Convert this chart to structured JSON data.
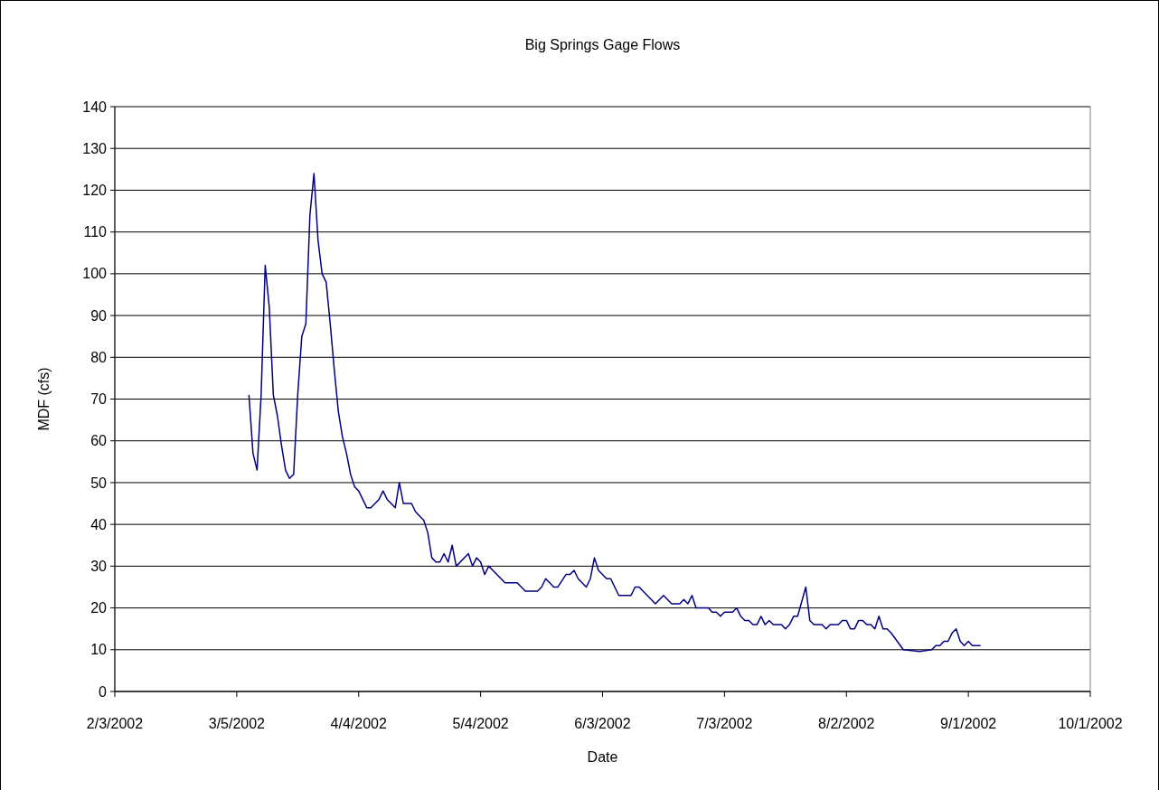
{
  "chart_data": {
    "type": "line",
    "title": "Big Springs Gage Flows",
    "xlabel": "Date",
    "ylabel": "MDF (cfs)",
    "xlim": [
      "2002-02-03",
      "2002-10-01"
    ],
    "xticks": [
      {
        "value": "2002-02-03",
        "label": "2/3/2002"
      },
      {
        "value": "2002-03-05",
        "label": "3/5/2002"
      },
      {
        "value": "2002-04-04",
        "label": "4/4/2002"
      },
      {
        "value": "2002-05-04",
        "label": "5/4/2002"
      },
      {
        "value": "2002-06-03",
        "label": "6/3/2002"
      },
      {
        "value": "2002-07-03",
        "label": "7/3/2002"
      },
      {
        "value": "2002-08-02",
        "label": "8/2/2002"
      },
      {
        "value": "2002-09-01",
        "label": "9/1/2002"
      },
      {
        "value": "2002-10-01",
        "label": "10/1/2002"
      }
    ],
    "ylim": [
      0,
      140
    ],
    "yticks": [
      0,
      10,
      20,
      30,
      40,
      50,
      60,
      70,
      80,
      90,
      100,
      110,
      120,
      130,
      140
    ],
    "grid": "y",
    "marker": "none",
    "line_style": "solid",
    "x": [
      "2002-03-08",
      "2002-03-09",
      "2002-03-10",
      "2002-03-11",
      "2002-03-12",
      "2002-03-13",
      "2002-03-14",
      "2002-03-15",
      "2002-03-16",
      "2002-03-17",
      "2002-03-18",
      "2002-03-19",
      "2002-03-20",
      "2002-03-21",
      "2002-03-22",
      "2002-03-23",
      "2002-03-24",
      "2002-03-25",
      "2002-03-26",
      "2002-03-27",
      "2002-03-28",
      "2002-03-29",
      "2002-03-30",
      "2002-03-31",
      "2002-04-01",
      "2002-04-02",
      "2002-04-03",
      "2002-04-04",
      "2002-04-05",
      "2002-04-06",
      "2002-04-07",
      "2002-04-09",
      "2002-04-10",
      "2002-04-11",
      "2002-04-12",
      "2002-04-13",
      "2002-04-14",
      "2002-04-15",
      "2002-04-17",
      "2002-04-18",
      "2002-04-19",
      "2002-04-20",
      "2002-04-21",
      "2002-04-22",
      "2002-04-23",
      "2002-04-24",
      "2002-04-25",
      "2002-04-26",
      "2002-04-27",
      "2002-04-28",
      "2002-05-01",
      "2002-05-02",
      "2002-05-03",
      "2002-05-04",
      "2002-05-05",
      "2002-05-06",
      "2002-05-07",
      "2002-05-08",
      "2002-05-10",
      "2002-05-13",
      "2002-05-15",
      "2002-05-18",
      "2002-05-19",
      "2002-05-20",
      "2002-05-21",
      "2002-05-22",
      "2002-05-23",
      "2002-05-25",
      "2002-05-26",
      "2002-05-27",
      "2002-05-28",
      "2002-05-30",
      "2002-05-31",
      "2002-06-01",
      "2002-06-02",
      "2002-06-04",
      "2002-06-05",
      "2002-06-07",
      "2002-06-10",
      "2002-06-11",
      "2002-06-12",
      "2002-06-14",
      "2002-06-16",
      "2002-06-18",
      "2002-06-20",
      "2002-06-22",
      "2002-06-23",
      "2002-06-24",
      "2002-06-25",
      "2002-06-26",
      "2002-06-29",
      "2002-06-30",
      "2002-07-01",
      "2002-07-02",
      "2002-07-03",
      "2002-07-05",
      "2002-07-06",
      "2002-07-07",
      "2002-07-08",
      "2002-07-09",
      "2002-07-10",
      "2002-07-11",
      "2002-07-12",
      "2002-07-13",
      "2002-07-14",
      "2002-07-15",
      "2002-07-17",
      "2002-07-18",
      "2002-07-19",
      "2002-07-20",
      "2002-07-21",
      "2002-07-23",
      "2002-07-24",
      "2002-07-25",
      "2002-07-27",
      "2002-07-28",
      "2002-07-29",
      "2002-07-31",
      "2002-08-01",
      "2002-08-02",
      "2002-08-03",
      "2002-08-04",
      "2002-08-05",
      "2002-08-06",
      "2002-08-07",
      "2002-08-08",
      "2002-08-09",
      "2002-08-10",
      "2002-08-11",
      "2002-08-12",
      "2002-08-13",
      "2002-08-16",
      "2002-08-20",
      "2002-08-23",
      "2002-08-24",
      "2002-08-25",
      "2002-08-26",
      "2002-08-27",
      "2002-08-28",
      "2002-08-29",
      "2002-08-30",
      "2002-08-31",
      "2002-09-01",
      "2002-09-02",
      "2002-09-04"
    ],
    "series": [
      {
        "color": "#000080",
        "values": [
          71,
          57,
          53,
          71,
          102,
          92,
          71,
          66,
          59,
          53,
          51,
          52,
          71,
          85,
          88,
          114,
          124,
          108,
          100,
          98,
          88,
          77,
          67,
          61,
          57,
          52,
          49,
          48,
          46,
          44,
          44,
          46,
          48,
          46,
          45,
          44,
          50,
          45,
          45,
          43,
          42,
          41,
          38,
          32,
          31,
          31,
          33,
          31,
          35,
          30,
          33,
          30,
          32,
          31,
          28,
          30,
          29,
          28,
          26,
          26,
          24,
          24,
          25,
          27,
          26,
          25,
          25,
          28,
          28,
          29,
          27,
          25,
          27,
          32,
          29,
          27,
          27,
          23,
          23,
          25,
          25,
          23,
          21,
          23,
          21,
          21,
          22,
          21,
          23,
          20,
          20,
          19,
          19,
          18,
          19,
          19,
          20,
          18,
          17,
          17,
          16,
          16,
          18,
          16,
          17,
          16,
          16,
          15,
          16,
          18,
          18,
          25,
          17,
          16,
          16,
          15,
          16,
          16,
          17,
          17,
          15,
          15,
          17,
          17,
          16,
          16,
          15,
          18,
          15,
          15,
          14,
          10,
          9.6,
          10,
          11,
          11,
          12,
          12,
          14,
          15,
          12,
          11,
          12,
          11,
          11
        ]
      }
    ]
  }
}
